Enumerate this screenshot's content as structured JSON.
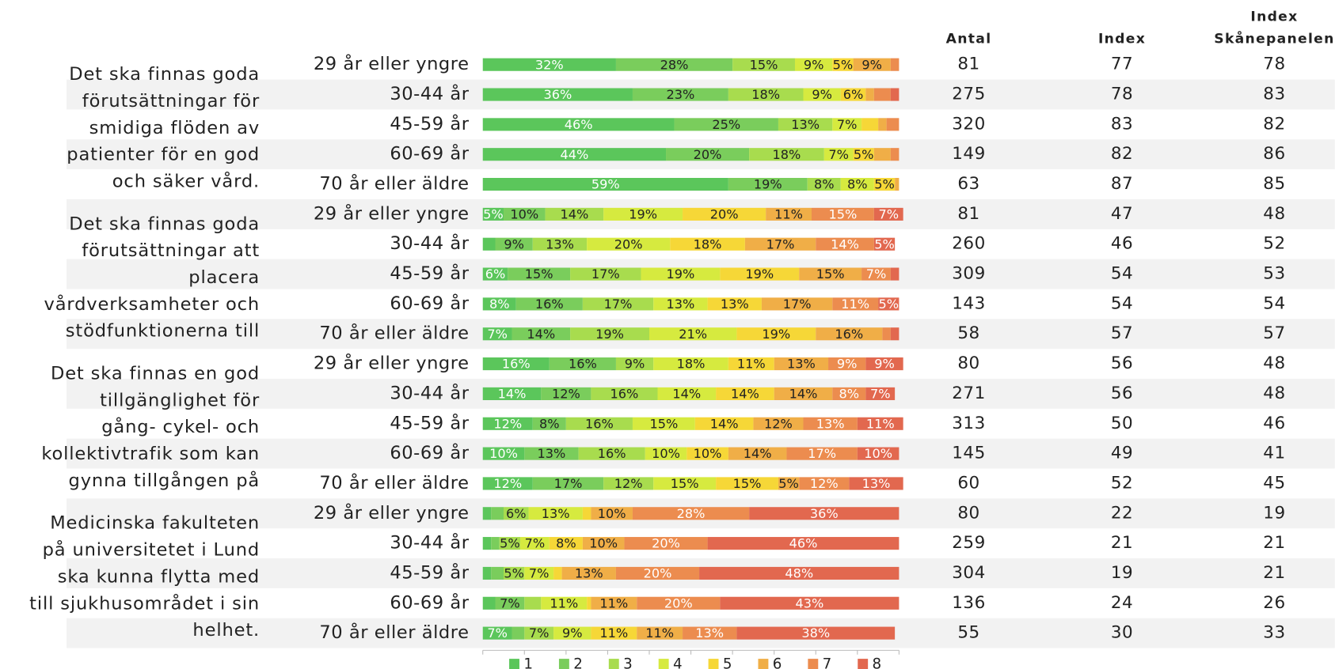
{
  "chart_data": {
    "type": "stacked_bar",
    "orientation": "horizontal",
    "categories": [
      "29 år eller yngre",
      "30-44 år",
      "45-59 år",
      "60-69 år",
      "70 år eller äldre",
      "29 år eller yngre",
      "30-44 år",
      "45-59 år",
      "60-69 år",
      "70 år eller äldre",
      "29 år eller yngre",
      "30-44 år",
      "45-59 år",
      "60-69 år",
      "70 år eller äldre",
      "29 år eller yngre",
      "30-44 år",
      "45-59 år",
      "60-69 år",
      "70 år eller äldre"
    ],
    "groups": [
      {
        "lines": [
          "Det ska finnas goda",
          "förutsättningar för",
          "smidiga flöden av",
          "patienter för en god",
          "och säker vård."
        ],
        "start": 0
      },
      {
        "lines": [
          "Det ska finnas goda",
          "förutsättningar att",
          "placera",
          "vårdverksamheter och",
          "stödfunktionerna till"
        ],
        "start": 5
      },
      {
        "lines": [
          "Det ska finnas en god",
          "tillgänglighet för",
          "gång- cykel- och",
          "kollektivtrafik som kan",
          "gynna tillgången på"
        ],
        "start": 10
      },
      {
        "lines": [
          "Medicinska fakulteten",
          "på universitetet i Lund",
          "ska kunna flytta med",
          "till sjukhusområdet i sin",
          "helhet."
        ],
        "start": 15
      }
    ],
    "xlim": [
      0,
      100
    ],
    "series": [
      {
        "name": "1",
        "color": "#5bc65b",
        "values": [
          32,
          36,
          46,
          44,
          59,
          5,
          3,
          6,
          8,
          7,
          16,
          14,
          12,
          10,
          12,
          2,
          2,
          2,
          3,
          7
        ],
        "value_labels": [
          "32%",
          "36%",
          "46%",
          "44%",
          "59%",
          "5%",
          null,
          "6%",
          "8%",
          "7%",
          "16%",
          "14%",
          "12%",
          "10%",
          "12%",
          null,
          null,
          null,
          null,
          "7%"
        ]
      },
      {
        "name": "2",
        "color": "#7acd5c",
        "values": [
          28,
          23,
          25,
          20,
          19,
          10,
          9,
          15,
          16,
          14,
          16,
          12,
          8,
          13,
          17,
          3,
          2,
          3,
          7,
          3
        ],
        "value_labels": [
          "28%",
          "23%",
          "25%",
          "20%",
          "19%",
          "10%",
          "9%",
          "15%",
          "16%",
          "14%",
          "16%",
          "12%",
          "8%",
          "13%",
          "17%",
          null,
          null,
          null,
          "7%",
          null
        ]
      },
      {
        "name": "3",
        "color": "#a8dc4e",
        "values": [
          15,
          18,
          13,
          18,
          8,
          14,
          13,
          17,
          17,
          19,
          9,
          16,
          16,
          16,
          12,
          6,
          5,
          5,
          4,
          7
        ],
        "value_labels": [
          "15%",
          "18%",
          "13%",
          "18%",
          "8%",
          "14%",
          "13%",
          "17%",
          "17%",
          "19%",
          "9%",
          "16%",
          "16%",
          "16%",
          "12%",
          "6%",
          "5%",
          "5%",
          null,
          "7%"
        ]
      },
      {
        "name": "4",
        "color": "#d6ea3f",
        "values": [
          9,
          9,
          7,
          7,
          8,
          19,
          20,
          19,
          13,
          21,
          18,
          14,
          15,
          10,
          15,
          13,
          7,
          7,
          11,
          9
        ],
        "value_labels": [
          "9%",
          "9%",
          "7%",
          "7%",
          "8%",
          "19%",
          "20%",
          "19%",
          "13%",
          "21%",
          "18%",
          "14%",
          "15%",
          "10%",
          "15%",
          "13%",
          "7%",
          "7%",
          "11%",
          "9%"
        ]
      },
      {
        "name": "5",
        "color": "#f6d737",
        "values": [
          5,
          6,
          4,
          5,
          5,
          20,
          18,
          19,
          13,
          19,
          11,
          14,
          14,
          10,
          15,
          2,
          8,
          2,
          1,
          11
        ],
        "value_labels": [
          "5%",
          "6%",
          null,
          "5%",
          "5%",
          "20%",
          "18%",
          "19%",
          "13%",
          "19%",
          "11%",
          "14%",
          "14%",
          "10%",
          "15%",
          null,
          "8%",
          null,
          null,
          "11%"
        ]
      },
      {
        "name": "6",
        "color": "#f0ae47",
        "values": [
          9,
          2,
          2,
          4,
          1,
          11,
          17,
          15,
          17,
          16,
          13,
          14,
          12,
          14,
          5,
          10,
          10,
          13,
          11,
          11
        ],
        "value_labels": [
          "9%",
          null,
          null,
          null,
          null,
          "11%",
          "17%",
          "15%",
          "17%",
          "16%",
          "13%",
          "14%",
          "12%",
          "14%",
          "5%",
          "10%",
          "10%",
          "13%",
          "11%",
          "11%"
        ]
      },
      {
        "name": "7",
        "color": "#ec8c4f",
        "values": [
          2,
          4,
          3,
          2,
          0,
          15,
          14,
          7,
          11,
          2,
          9,
          8,
          13,
          17,
          12,
          28,
          20,
          20,
          20,
          13
        ],
        "value_labels": [
          null,
          null,
          null,
          null,
          null,
          "15%",
          "14%",
          "7%",
          "11%",
          null,
          "9%",
          "8%",
          "13%",
          "17%",
          "12%",
          "28%",
          "20%",
          "20%",
          "20%",
          "13%"
        ]
      },
      {
        "name": "8",
        "color": "#e2684f",
        "values": [
          0,
          2,
          0,
          0,
          0,
          7,
          5,
          2,
          5,
          2,
          9,
          7,
          11,
          10,
          13,
          36,
          46,
          48,
          43,
          38
        ],
        "value_labels": [
          null,
          null,
          null,
          null,
          null,
          "7%",
          "5%",
          null,
          "5%",
          null,
          "9%",
          "7%",
          "11%",
          "10%",
          "13%",
          "36%",
          "46%",
          "48%",
          "43%",
          "38%"
        ]
      }
    ],
    "table": {
      "headers": [
        "Antal",
        "Index",
        [
          "Index",
          "Skånepanelen"
        ]
      ],
      "columns": [
        [
          81,
          275,
          320,
          149,
          63,
          81,
          260,
          309,
          143,
          58,
          80,
          271,
          313,
          145,
          60,
          80,
          259,
          304,
          136,
          55
        ],
        [
          77,
          78,
          83,
          82,
          87,
          47,
          46,
          54,
          54,
          57,
          56,
          56,
          50,
          49,
          52,
          22,
          21,
          19,
          24,
          30
        ],
        [
          78,
          83,
          82,
          86,
          85,
          48,
          52,
          53,
          54,
          57,
          48,
          48,
          46,
          41,
          45,
          19,
          21,
          21,
          26,
          33
        ]
      ]
    }
  }
}
